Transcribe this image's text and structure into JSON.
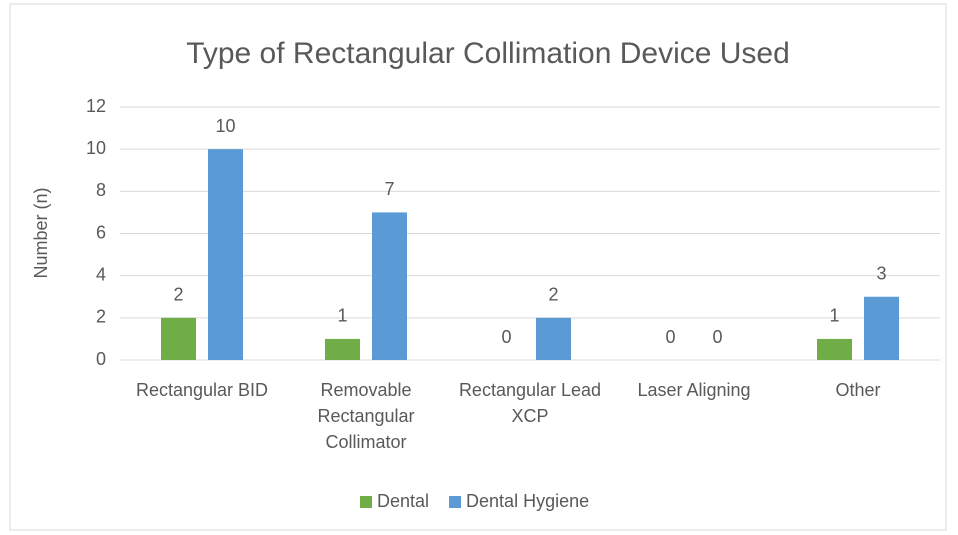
{
  "chart_data": {
    "type": "bar",
    "title": "Type of Rectangular Collimation Device Used",
    "y_label": "Number (n)",
    "categories": [
      "Rectangular BID",
      "Removable Rectangular Collimator",
      "Rectangular Lead XCP",
      "Laser Aligning",
      "Other"
    ],
    "series": [
      {
        "name": "Dental",
        "color": "#70ad47",
        "values": [
          2,
          1,
          0,
          0,
          1
        ]
      },
      {
        "name": "Dental Hygiene",
        "color": "#5b9bd5",
        "values": [
          10,
          7,
          2,
          0,
          3
        ]
      }
    ],
    "ylim": [
      0,
      12
    ],
    "yticks": [
      0,
      2,
      4,
      6,
      8,
      10,
      12
    ],
    "grid": true,
    "legend": "bottom"
  }
}
